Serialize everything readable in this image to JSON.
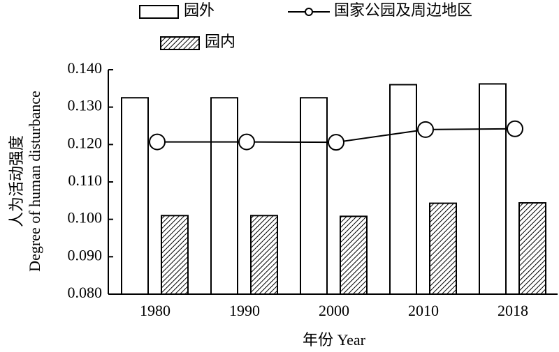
{
  "chart_data": {
    "type": "bar",
    "categories": [
      "1980",
      "1990",
      "2000",
      "2010",
      "2018"
    ],
    "series": [
      {
        "name": "园外",
        "type": "bar",
        "color": "#ffffff",
        "values": [
          0.1325,
          0.1325,
          0.1325,
          0.136,
          0.1362
        ]
      },
      {
        "name": "国家公园及周边地区",
        "type": "line",
        "color": "#000000",
        "values": [
          0.1207,
          0.1207,
          0.1206,
          0.124,
          0.1242
        ]
      },
      {
        "name": "园内",
        "type": "bar",
        "color": "hatch",
        "values": [
          0.101,
          0.101,
          0.1008,
          0.1043,
          0.1044
        ]
      }
    ],
    "ylim": [
      0.08,
      0.14
    ],
    "yticks": [
      {
        "value": 0.08,
        "label": "0.080"
      },
      {
        "value": 0.09,
        "label": "0.090"
      },
      {
        "value": 0.1,
        "label": "0.100"
      },
      {
        "value": 0.11,
        "label": "0.110"
      },
      {
        "value": 0.12,
        "label": "0.120"
      },
      {
        "value": 0.13,
        "label": "0.130"
      },
      {
        "value": 0.14,
        "label": "0.140"
      }
    ],
    "ylabel": [
      "人为活动强度",
      "Degree of human disturbance"
    ],
    "xlabel": "年份 Year"
  }
}
